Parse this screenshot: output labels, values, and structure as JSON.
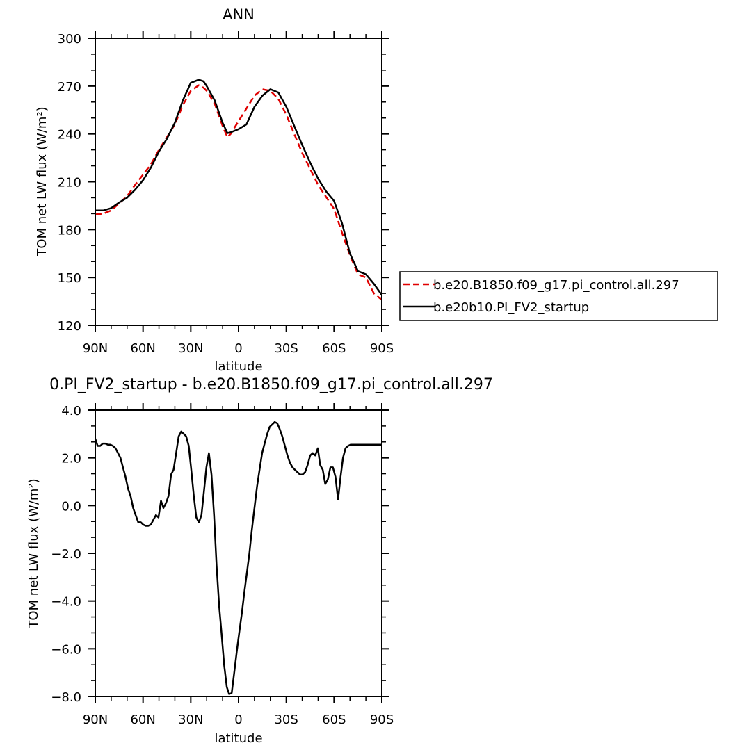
{
  "chart_data": [
    {
      "type": "line",
      "title": "ANN",
      "xlabel": "latitude",
      "ylabel": "TOM net LW flux (W/m²)",
      "xlim": [
        90,
        -90
      ],
      "ylim": [
        120,
        300
      ],
      "xticks": [
        90,
        60,
        30,
        0,
        -30,
        -60,
        -90
      ],
      "xtick_labels": [
        "90N",
        "60N",
        "30N",
        "0",
        "30S",
        "60S",
        "90S"
      ],
      "yticks": [
        120,
        150,
        180,
        210,
        240,
        270,
        300
      ],
      "ytick_labels": [
        "120",
        "150",
        "180",
        "210",
        "240",
        "270",
        "300"
      ],
      "grid": false,
      "legend_position": "right",
      "series": [
        {
          "name": "b.e20.B1850.f09_g17.pi_control.all.297",
          "color": "#e00000",
          "dash": "dashed",
          "x": [
            90,
            85,
            80,
            75,
            70,
            65,
            60,
            55,
            50,
            45,
            40,
            35,
            30,
            25,
            22,
            20,
            15,
            10,
            7,
            5,
            0,
            -5,
            -10,
            -15,
            -20,
            -25,
            -30,
            -35,
            -40,
            -45,
            -50,
            -55,
            -60,
            -65,
            -70,
            -75,
            -80,
            -85,
            -90
          ],
          "values": [
            189.5,
            190,
            192,
            196.5,
            201,
            208,
            214.5,
            221,
            230,
            238,
            246,
            258,
            267,
            270.5,
            269,
            267,
            259,
            245,
            238,
            240,
            248,
            256,
            264,
            268,
            267,
            262,
            252,
            240,
            228,
            218,
            208,
            200.5,
            193,
            178,
            164,
            152,
            150,
            140,
            136
          ]
        },
        {
          "name": "b.e20b10.PI_FV2_startup",
          "color": "#000000",
          "dash": "solid",
          "x": [
            90,
            85,
            80,
            75,
            70,
            65,
            60,
            55,
            50,
            45,
            40,
            35,
            30,
            25,
            22,
            20,
            15,
            10,
            7,
            5,
            0,
            -5,
            -10,
            -15,
            -20,
            -25,
            -30,
            -35,
            -40,
            -45,
            -50,
            -55,
            -60,
            -65,
            -70,
            -75,
            -80,
            -85,
            -90
          ],
          "values": [
            192,
            192,
            193.5,
            197,
            200,
            205,
            211,
            219,
            229,
            237,
            247,
            261,
            272,
            274,
            273,
            270,
            261,
            247,
            240.5,
            241,
            243,
            246,
            257,
            264,
            268,
            266,
            257,
            245,
            233,
            222,
            212,
            204,
            198,
            184,
            165,
            154,
            152,
            146,
            139
          ]
        }
      ]
    },
    {
      "type": "line",
      "title": "0.PI_FV2_startup - b.e20.B1850.f09_g17.pi_control.all.297",
      "xlabel": "latitude",
      "ylabel": "TOM net LW flux (W/m²)",
      "xlim": [
        90,
        -90
      ],
      "ylim": [
        -8,
        4
      ],
      "xticks": [
        90,
        60,
        30,
        0,
        -30,
        -60,
        -90
      ],
      "xtick_labels": [
        "90N",
        "60N",
        "30N",
        "0",
        "30S",
        "60S",
        "90S"
      ],
      "yticks": [
        -8,
        -6,
        -4,
        -2,
        0,
        2,
        4
      ],
      "ytick_labels": [
        "−8.0",
        "−6.0",
        "−4.0",
        "−2.0",
        "0.0",
        "2.0",
        "4.0"
      ],
      "grid": false,
      "series": [
        {
          "color": "#000000",
          "dash": "solid",
          "x": [
            90,
            88.5,
            86.9,
            85.3,
            83.7,
            82.1,
            80.5,
            78.9,
            77.3,
            75.7,
            74.2,
            72.6,
            71,
            69.4,
            67.8,
            66.2,
            64.6,
            63,
            61.4,
            59.9,
            58.3,
            56.7,
            55.1,
            53.5,
            51.9,
            50.3,
            48.7,
            47.2,
            45.6,
            44,
            42.4,
            40.8,
            39.2,
            37.6,
            36,
            34.4,
            32.9,
            31.3,
            29.7,
            28.1,
            26.5,
            24.9,
            23.3,
            21.7,
            20.2,
            18.6,
            17,
            15.4,
            13.8,
            12.2,
            10.6,
            9,
            7.4,
            5.9,
            4.3,
            2.7,
            1.1,
            -0.5,
            -2.1,
            -3.7,
            -5.3,
            -6.8,
            -8.4,
            -10,
            -11.6,
            -13.2,
            -14.8,
            -16.4,
            -18,
            -19.6,
            -21.2,
            -22.7,
            -24.3,
            -25.9,
            -27.5,
            -29.1,
            -30.7,
            -32.3,
            -33.9,
            -35.4,
            -37,
            -38.6,
            -40.2,
            -41.8,
            -43.4,
            -45,
            -46.6,
            -48.2,
            -49.8,
            -51.3,
            -52.9,
            -54.5,
            -56.1,
            -57.7,
            -59.3,
            -60.9,
            -62.5,
            -64.1,
            -65.6,
            -67.2,
            -68.8,
            -70.4,
            -72,
            -73.6,
            -75.2,
            -76.8,
            -78.4,
            -80,
            -81.6,
            -83.1,
            -84.7,
            -86.3,
            -87.9,
            -89.5,
            -90
          ],
          "values": [
            2.8,
            2.5,
            2.5,
            2.6,
            2.6,
            2.55,
            2.55,
            2.5,
            2.4,
            2.2,
            2.0,
            1.6,
            1.2,
            0.7,
            0.4,
            -0.1,
            -0.4,
            -0.7,
            -0.7,
            -0.8,
            -0.85,
            -0.85,
            -0.8,
            -0.6,
            -0.4,
            -0.5,
            0.2,
            -0.1,
            0.1,
            0.4,
            1.3,
            1.5,
            2.2,
            2.9,
            3.1,
            3.0,
            2.9,
            2.5,
            1.5,
            0.4,
            -0.5,
            -0.7,
            -0.4,
            0.6,
            1.6,
            2.2,
            1.3,
            -0.4,
            -2.5,
            -4.2,
            -5.4,
            -6.7,
            -7.6,
            -7.9,
            -7.85,
            -7.0,
            -6.1,
            -5.3,
            -4.5,
            -3.6,
            -2.8,
            -2.0,
            -1.0,
            -0.1,
            0.8,
            1.5,
            2.2,
            2.6,
            3.0,
            3.3,
            3.4,
            3.5,
            3.45,
            3.2,
            2.9,
            2.5,
            2.1,
            1.8,
            1.6,
            1.5,
            1.4,
            1.3,
            1.3,
            1.4,
            1.7,
            2.1,
            2.2,
            2.1,
            2.4,
            1.7,
            1.5,
            0.9,
            1.1,
            1.6,
            1.6,
            1.2,
            0.25,
            1.2,
            2.0,
            2.4,
            2.5,
            2.55,
            2.55,
            2.55,
            2.55,
            2.55,
            2.55,
            2.55,
            2.55,
            2.55,
            2.55,
            2.55,
            2.55,
            2.55,
            2.55
          ]
        }
      ]
    }
  ]
}
